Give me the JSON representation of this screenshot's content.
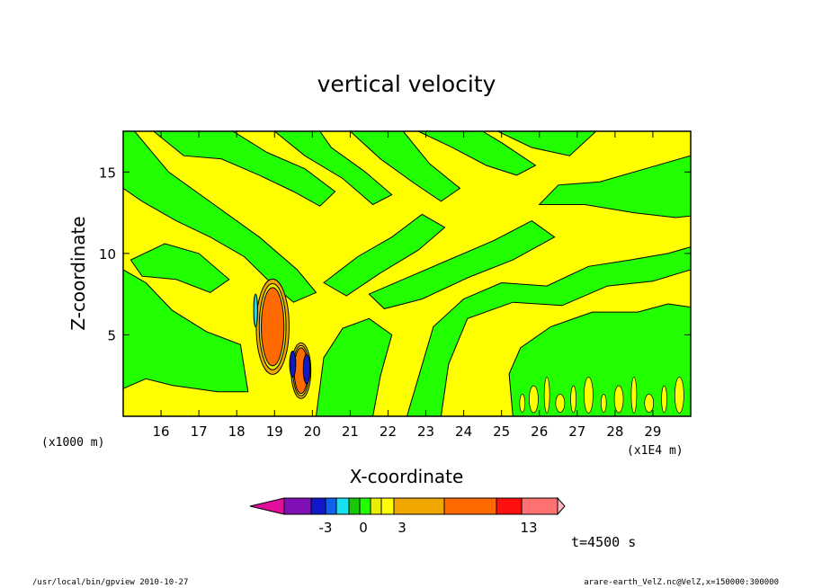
{
  "chart_data": {
    "type": "heatmap",
    "title": "vertical velocity",
    "xlabel": "X-coordinate",
    "ylabel": "Z-coordinate",
    "x_unit_label": "(x1E4 m)",
    "y_unit_label": "(x1000 m)",
    "xlim": [
      15,
      30
    ],
    "ylim": [
      0,
      17.5
    ],
    "x_ticks": [
      16,
      17,
      18,
      19,
      20,
      21,
      22,
      23,
      24,
      25,
      26,
      27,
      28,
      29
    ],
    "y_ticks": [
      5,
      10,
      15
    ],
    "colorbar": {
      "tick_labels": [
        {
          "value": -3,
          "label": "-3"
        },
        {
          "value": 0,
          "label": "0"
        },
        {
          "value": 3,
          "label": "3"
        },
        {
          "value": 13,
          "label": "13"
        }
      ],
      "colors": [
        "#e0109a",
        "#7f10b5",
        "#1018c8",
        "#1060f0",
        "#18e0f0",
        "#18c808",
        "#22ff00",
        "#e8f000",
        "#ffff00",
        "#f0a800",
        "#ff6a00",
        "#ff1010",
        "#ff7070",
        "#ffb6c1"
      ]
    },
    "time_label": "t=4500 s",
    "footer_left": "/usr/local/bin/gpview  2010-10-27",
    "footer_right": "arare-earth_VelZ.nc@VelZ,x=150000:300000",
    "background_band_color": "#22ff00",
    "features": [
      {
        "x": 18.95,
        "z": 5.5,
        "rx": 0.3,
        "rz": 2.4,
        "level": "strong-updraft",
        "color": "#ff6a00"
      },
      {
        "x": 19.7,
        "z": 2.8,
        "rx": 0.18,
        "rz": 1.4,
        "level": "strong-updraft",
        "color": "#ff6a00"
      },
      {
        "x": 19.48,
        "z": 3.2,
        "rx": 0.08,
        "rz": 0.8,
        "level": "downdraft",
        "color": "#1018c8"
      },
      {
        "x": 19.85,
        "z": 2.9,
        "rx": 0.09,
        "rz": 0.9,
        "level": "downdraft",
        "color": "#1018c8"
      },
      {
        "x": 18.5,
        "z": 6.5,
        "rx": 0.05,
        "rz": 1.0,
        "level": "weak-downdraft",
        "color": "#18e0f0"
      }
    ]
  }
}
